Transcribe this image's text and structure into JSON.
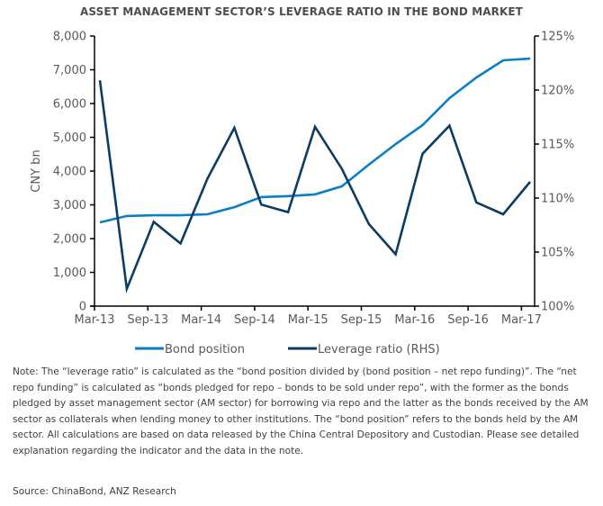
{
  "chart_data": {
    "type": "line",
    "title": "ASSET MANAGEMENT SECTOR’S LEVERAGE RATIO IN THE BOND MARKET",
    "xlabel": "",
    "ylabel": "CNY bn",
    "y2label": "",
    "x": [
      "Mar-13",
      "Jun-13",
      "Sep-13",
      "Dec-13",
      "Mar-14",
      "Jun-14",
      "Sep-14",
      "Dec-14",
      "Mar-15",
      "Jun-15",
      "Sep-15",
      "Dec-15",
      "Mar-16",
      "Jun-16",
      "Sep-16",
      "Dec-16",
      "Mar-17"
    ],
    "x_tick_labels": [
      "Mar-13",
      "Sep-13",
      "Mar-14",
      "Sep-14",
      "Mar-15",
      "Sep-15",
      "Mar-16",
      "Sep-16",
      "Mar-17"
    ],
    "ylim": [
      0,
      8000
    ],
    "y_ticks": [
      0,
      1000,
      2000,
      3000,
      4000,
      5000,
      6000,
      7000,
      8000
    ],
    "y_tick_labels": [
      "0",
      "1,000",
      "2,000",
      "3,000",
      "4,000",
      "5,000",
      "6,000",
      "7,000",
      "8,000"
    ],
    "y2lim": [
      100,
      125
    ],
    "y2_ticks": [
      100,
      105,
      110,
      115,
      120,
      125
    ],
    "y2_tick_labels": [
      "100%",
      "105%",
      "110%",
      "115%",
      "120%",
      "125%"
    ],
    "grid": false,
    "legend_position": "bottom",
    "series": [
      {
        "name": "Bond position",
        "axis": "left",
        "color": "#0a7fc4",
        "values": [
          2480,
          2670,
          2690,
          2690,
          2720,
          2930,
          3230,
          3260,
          3310,
          3550,
          4190,
          4800,
          5360,
          6160,
          6770,
          7280,
          7330
        ]
      },
      {
        "name": "Leverage ratio (RHS)",
        "axis": "right",
        "color": "#0b3d63",
        "values": [
          120.9,
          101.6,
          107.8,
          105.8,
          111.8,
          116.5,
          109.4,
          108.7,
          116.6,
          112.7,
          107.6,
          104.8,
          114.1,
          116.7,
          109.6,
          108.5,
          111.5
        ]
      }
    ]
  },
  "note": "Note: The “leverage ratio” is calculated as the “bond position divided by (bond position – net repo funding)”. The “net repo funding” is calculated as “bonds pledged for repo – bonds to be sold under repo”, with the former as the bonds pledged by asset management sector (AM sector) for borrowing via repo and the latter as the bonds received by the AM sector as collaterals when lending money to other institutions. The “bond position” refers to the bonds held by the AM sector. All calculations are based on data released by the China Central Depository and Custodian. Please see detailed explanation regarding the indicator and the data in the note.",
  "source": "Source: ChinaBond, ANZ Research"
}
